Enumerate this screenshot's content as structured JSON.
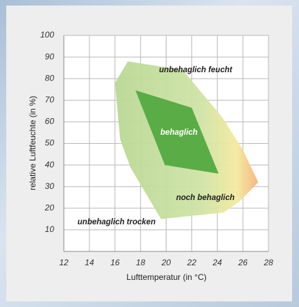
{
  "chart_data": {
    "type": "polygon",
    "xlabel": "Lufttemperatur (in °C)",
    "ylabel": "relative Luftfeuchte (in %)",
    "xlim": [
      12,
      28
    ],
    "xticks": [
      12,
      14,
      16,
      18,
      20,
      22,
      24,
      26,
      28
    ],
    "ylim": [
      0,
      100
    ],
    "yticks": [
      10,
      20,
      30,
      40,
      50,
      60,
      70,
      80,
      90,
      100
    ],
    "grid": true,
    "series": [
      {
        "name": "noch behaglich",
        "color": "#c4dfa0",
        "x": [
          17,
          21.3,
          24.4,
          26,
          27.2,
          25.7,
          24.5,
          19.6,
          17.2,
          16.4,
          16
        ],
        "y": [
          88,
          84,
          62,
          47,
          32,
          23,
          18,
          15,
          39,
          52,
          78
        ]
      },
      {
        "name": "behaglich",
        "color": "#5aac46",
        "x": [
          17.6,
          22,
          24.1,
          19.9
        ],
        "y": [
          74.6,
          66.5,
          36,
          40
        ]
      }
    ],
    "annotations": [
      "unbehaglich feucht",
      "behaglich",
      "noch behaglich",
      "unbehaglich trocken"
    ]
  }
}
